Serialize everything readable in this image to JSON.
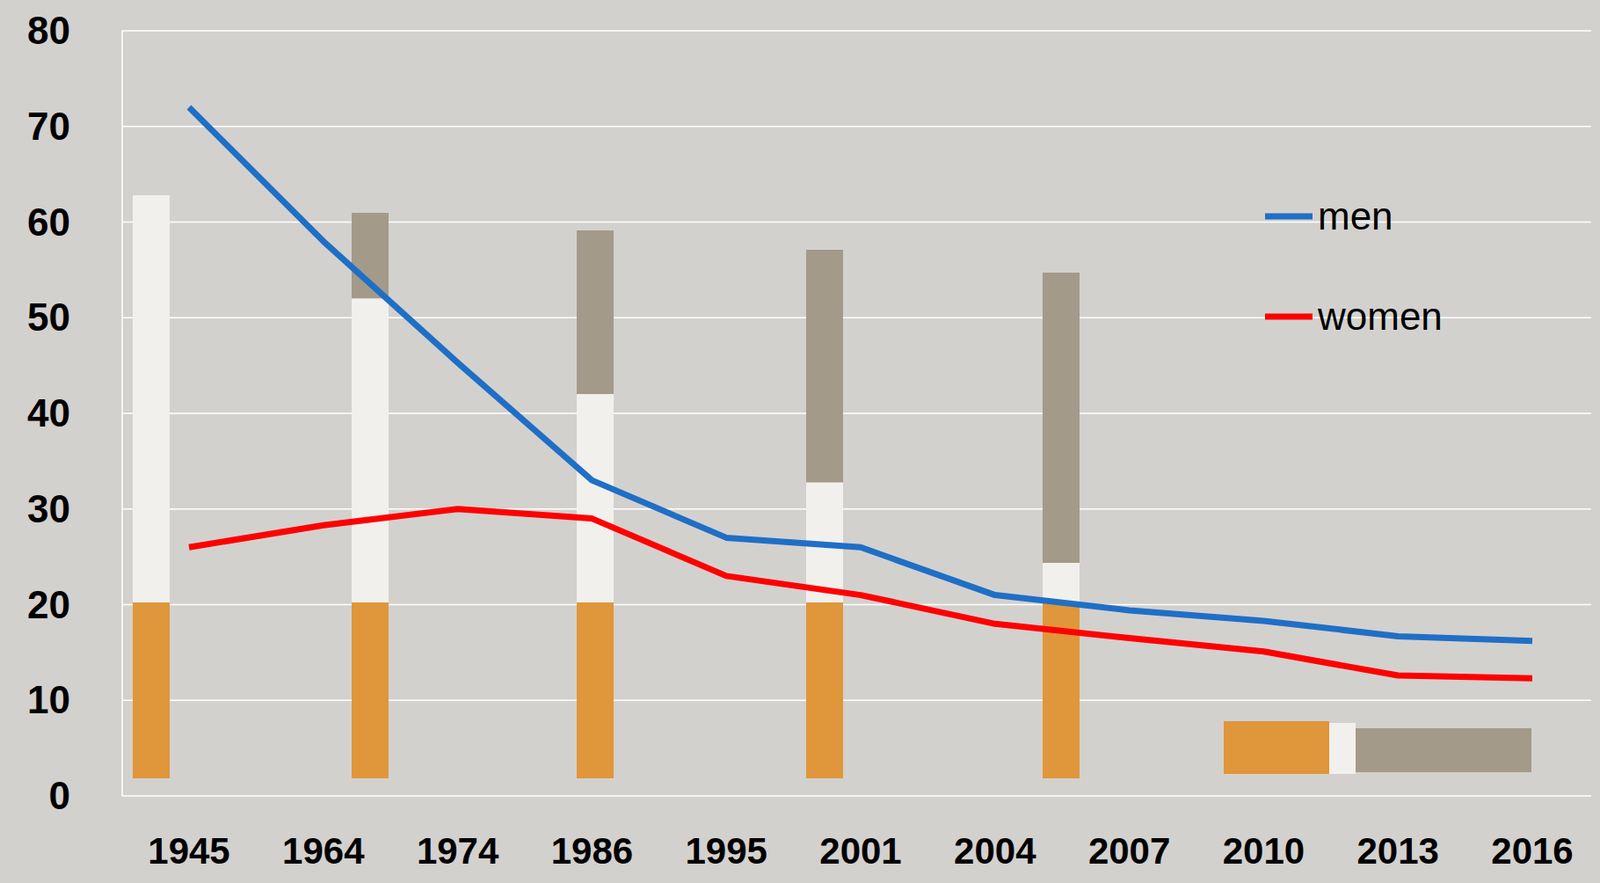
{
  "chart_data": {
    "type": "line",
    "categories": [
      "1945",
      "1964",
      "1974",
      "1986",
      "1995",
      "2001",
      "2004",
      "2007",
      "2010",
      "2013",
      "2016"
    ],
    "series": [
      {
        "name": "men",
        "color": "#1f6fc6",
        "values": [
          72,
          58,
          45.3,
          33,
          27,
          26,
          21,
          19.4,
          18.3,
          16.7,
          16.2
        ]
      },
      {
        "name": "women",
        "color": "#ff0000",
        "values": [
          26,
          28.3,
          30,
          29,
          23,
          21,
          18,
          16.5,
          15.1,
          12.6,
          12.3
        ]
      }
    ],
    "ylim": [
      0,
      80
    ],
    "yticks": [
      0,
      10,
      20,
      30,
      40,
      50,
      60,
      70,
      80
    ],
    "grid": true,
    "legend": "upper right"
  }
}
